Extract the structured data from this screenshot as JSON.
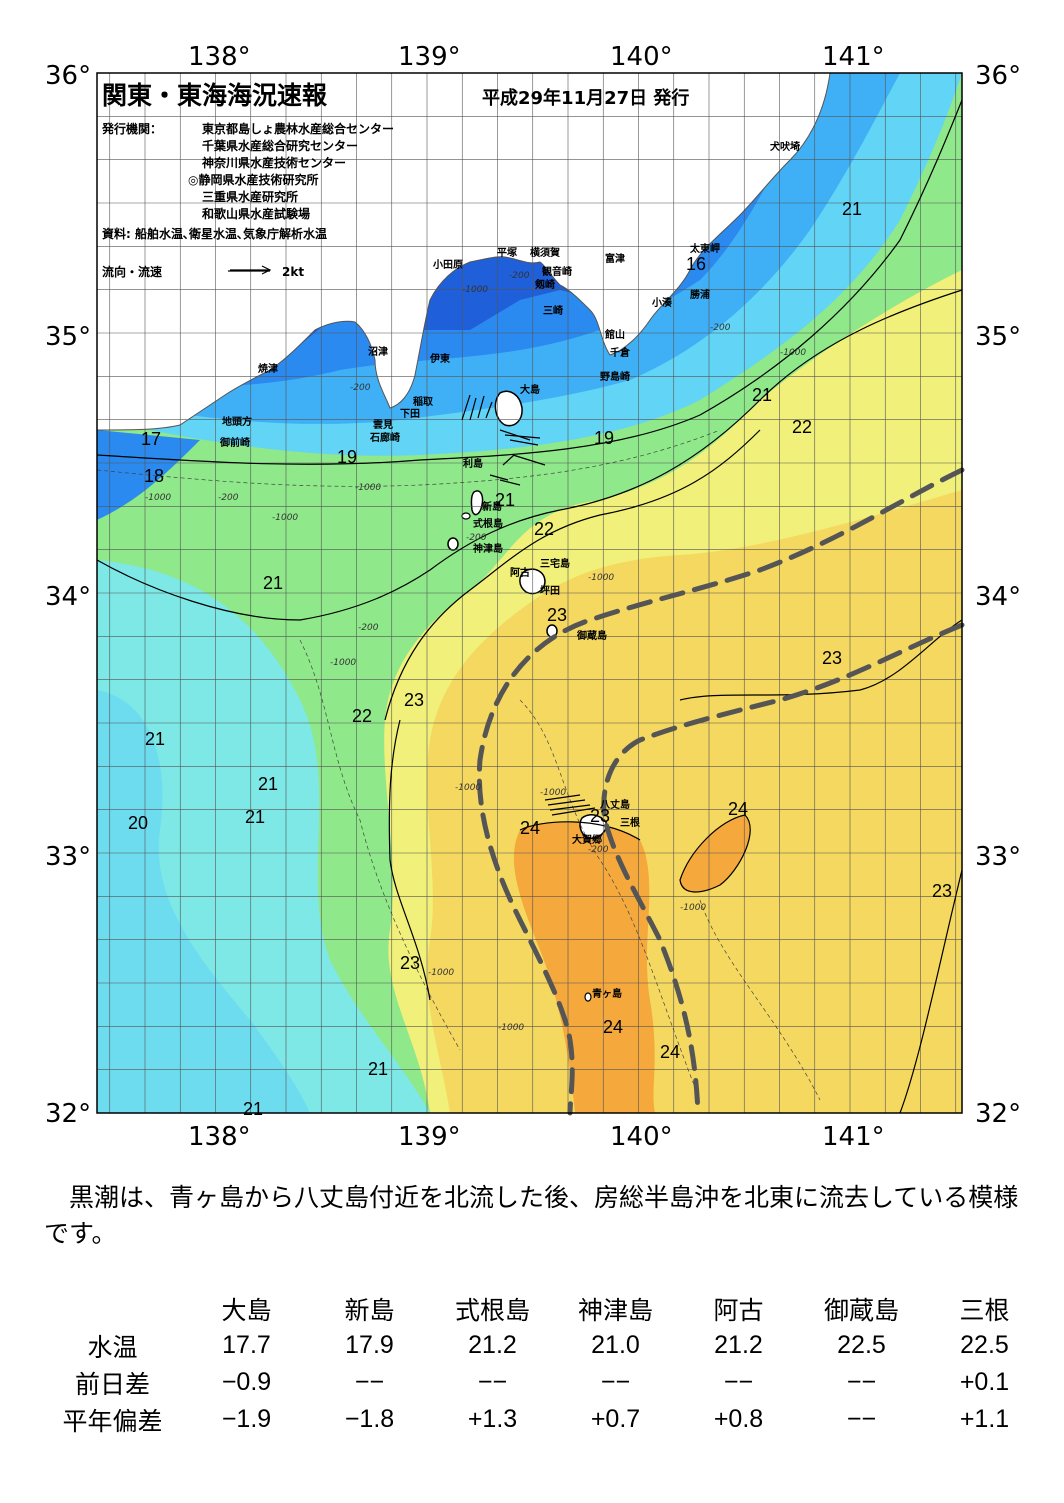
{
  "title": "関東・東海海況速報",
  "issue_date": "平成29年11月27日 発行",
  "issuers_label": "発行機関：",
  "issuers": [
    "東京都島しょ農林水産総合センター",
    "千葉県水産総合研究センター",
    "神奈川県水産技術センター",
    "◎静岡県水産技術研究所",
    "三重県水産研究所",
    "和歌山県水産試験場"
  ],
  "sources": "資料: 船舶水温､衛星水温､気象庁解析水温",
  "legend": {
    "label": "流向・流速",
    "speed": "2kt"
  },
  "axes": {
    "lon_labels": [
      "138°",
      "139°",
      "140°",
      "141°"
    ],
    "lat_labels": [
      "36°",
      "35°",
      "34°",
      "33°",
      "32°"
    ]
  },
  "place_names": [
    "犬吠埼",
    "太東岬",
    "勝浦",
    "小湊",
    "富津",
    "館山",
    "千倉",
    "野島崎",
    "平塚",
    "横須賀",
    "観音崎",
    "小田原",
    "剱崎",
    "三崎",
    "沼津",
    "伊東",
    "焼津",
    "稲取",
    "下田",
    "雲見",
    "石廊崎",
    "地頭方",
    "御前崎",
    "大島",
    "利島",
    "新島",
    "式根島",
    "神津島",
    "三宅島",
    "阿古",
    "坪田",
    "御蔵島",
    "八丈島",
    "三根",
    "大賀郷",
    "青ヶ島"
  ],
  "temperature_labels": [
    "21",
    "16",
    "21",
    "22",
    "17",
    "18",
    "19",
    "19",
    "21",
    "22",
    "21",
    "23",
    "23",
    "22",
    "23",
    "21",
    "21",
    "21",
    "20",
    "24",
    "23",
    "24",
    "23",
    "23",
    "24",
    "24",
    "21",
    "21"
  ],
  "depth_labels": [
    "-200",
    "-1000"
  ],
  "colors": {
    "temp_16": "#1f5fd9",
    "temp_17": "#2b8af0",
    "temp_18": "#3fb0f5",
    "temp_19": "#62d4f5",
    "temp_20": "#7de8e6",
    "temp_21": "#8fe88a",
    "temp_22": "#f0f07a",
    "temp_23": "#f5d860",
    "temp_24": "#f5a83c",
    "kuroshio_axis": "#555555"
  },
  "description": "黒潮は、青ヶ島から八丈島付近を北流した後、房総半島沖を北東に流去している模様です。",
  "stats": {
    "headers": [
      "大島",
      "新島",
      "式根島",
      "神津島",
      "阿古",
      "御蔵島",
      "三根"
    ],
    "rows": [
      {
        "label": "水温",
        "values": [
          "17.7",
          "17.9",
          "21.2",
          "21.0",
          "21.2",
          "22.5",
          "22.5"
        ]
      },
      {
        "label": "前日差",
        "values": [
          "−0.9",
          "−−",
          "−−",
          "−−",
          "−−",
          "−−",
          "+0.1"
        ]
      },
      {
        "label": "平年偏差",
        "values": [
          "−1.9",
          "−1.8",
          "+1.3",
          "+0.7",
          "+0.8",
          "−−",
          "+1.1"
        ]
      }
    ]
  }
}
